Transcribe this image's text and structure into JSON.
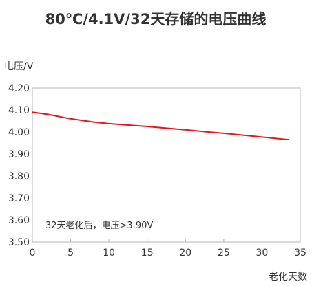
{
  "chart_data": {
    "type": "line",
    "title": "80℃/4.1V/32天存储的电压曲线",
    "ylabel": "电压/V",
    "xlabel": "老化天数",
    "xlim": [
      0,
      35
    ],
    "ylim": [
      3.5,
      4.2
    ],
    "xticks": [
      "0",
      "5",
      "10",
      "15",
      "20",
      "25",
      "30",
      "35"
    ],
    "yticks": [
      "3.50",
      "3.60",
      "3.70",
      "3.80",
      "3.90",
      "4.00",
      "4.10",
      "4.20"
    ],
    "grid": false,
    "annotation": "32天老化后，电压>3.90V",
    "series": [
      {
        "color": "#e8141b",
        "x": [
          0,
          2,
          5,
          8,
          10,
          13,
          15,
          18,
          20,
          23,
          25,
          28,
          30,
          33.5
        ],
        "y": [
          4.09,
          4.08,
          4.06,
          4.045,
          4.038,
          4.03,
          4.025,
          4.016,
          4.01,
          4.0,
          3.994,
          3.984,
          3.977,
          3.965
        ]
      }
    ]
  }
}
